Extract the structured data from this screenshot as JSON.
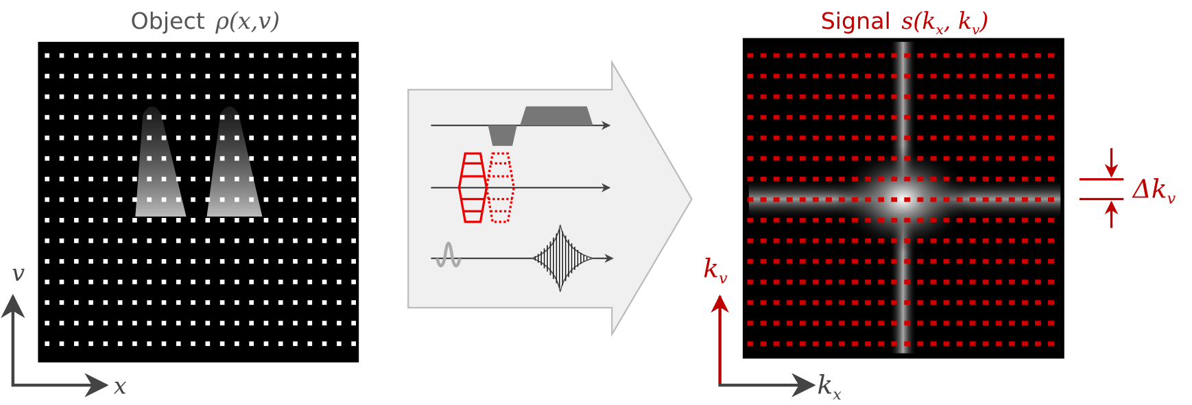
{
  "left_panel": {
    "title": "Object",
    "title_math": "ρ(x,v)",
    "axis_x": "x",
    "axis_y": "v"
  },
  "right_panel": {
    "title": "Signal",
    "title_math_parts": [
      "s(k",
      "x",
      ", k",
      "v",
      ")"
    ],
    "axis_x": {
      "base": "k",
      "sub": "x"
    },
    "axis_y": {
      "base": "k",
      "sub": "v"
    },
    "spacing_label": {
      "base": "Δk",
      "sub": "v"
    }
  }
}
